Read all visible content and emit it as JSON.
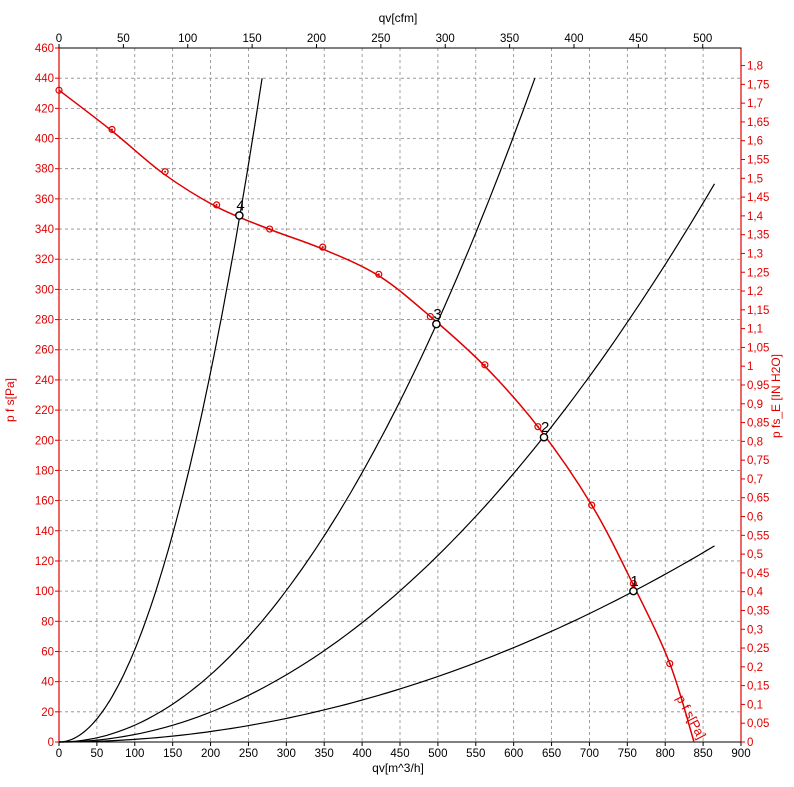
{
  "chart_data": {
    "type": "line",
    "x_label_bottom": "qv[m^3/h]",
    "x_label_top": "qv[cfm]",
    "y_label_left": "p f s[Pa]",
    "y_label_right": "p fs_E [IN H2O]",
    "xlim": [
      0,
      900
    ],
    "ylim": [
      0,
      460
    ],
    "x_ticks": [
      "0",
      "50",
      "100",
      "150",
      "200",
      "250",
      "300",
      "350",
      "400",
      "450",
      "500",
      "550",
      "600",
      "650",
      "700",
      "750",
      "800",
      "850",
      "900"
    ],
    "y_ticks": [
      "0",
      "20",
      "40",
      "60",
      "80",
      "100",
      "120",
      "140",
      "160",
      "180",
      "200",
      "220",
      "240",
      "260",
      "280",
      "300",
      "320",
      "340",
      "360",
      "380",
      "400",
      "420",
      "440",
      "460"
    ],
    "top_ticks": [
      {
        "value": 0,
        "label": "0"
      },
      {
        "value": 50,
        "label": "50"
      },
      {
        "value": 100,
        "label": "100"
      },
      {
        "value": 150,
        "label": "150"
      },
      {
        "value": 200,
        "label": "200"
      },
      {
        "value": 250,
        "label": "250"
      },
      {
        "value": 300,
        "label": "300"
      },
      {
        "value": 350,
        "label": "350"
      },
      {
        "value": 400,
        "label": "400"
      },
      {
        "value": 450,
        "label": "450"
      },
      {
        "value": 500,
        "label": "500"
      }
    ],
    "cfm_per_m3h": 0.588578,
    "right_ticks": [
      {
        "value": 0,
        "label": "0"
      },
      {
        "value": 0.05,
        "label": "0,05"
      },
      {
        "value": 0.1,
        "label": "0,1"
      },
      {
        "value": 0.15,
        "label": "0,15"
      },
      {
        "value": 0.2,
        "label": "0,2"
      },
      {
        "value": 0.25,
        "label": "0,25"
      },
      {
        "value": 0.3,
        "label": "0,3"
      },
      {
        "value": 0.35,
        "label": "0,35"
      },
      {
        "value": 0.4,
        "label": "0,4"
      },
      {
        "value": 0.45,
        "label": "0,45"
      },
      {
        "value": 0.5,
        "label": "0,5"
      },
      {
        "value": 0.55,
        "label": "0,55"
      },
      {
        "value": 0.6,
        "label": "0,6"
      },
      {
        "value": 0.65,
        "label": "0,65"
      },
      {
        "value": 0.7,
        "label": "0,7"
      },
      {
        "value": 0.75,
        "label": "0,75"
      },
      {
        "value": 0.8,
        "label": "0,8"
      },
      {
        "value": 0.85,
        "label": "0,85"
      },
      {
        "value": 0.9,
        "label": "0,9"
      },
      {
        "value": 0.95,
        "label": "0,95"
      },
      {
        "value": 1.0,
        "label": "1"
      },
      {
        "value": 1.05,
        "label": "1,05"
      },
      {
        "value": 1.1,
        "label": "1,1"
      },
      {
        "value": 1.15,
        "label": "1,15"
      },
      {
        "value": 1.2,
        "label": "1,2"
      },
      {
        "value": 1.25,
        "label": "1,25"
      },
      {
        "value": 1.3,
        "label": "1,3"
      },
      {
        "value": 1.35,
        "label": "1,35"
      },
      {
        "value": 1.4,
        "label": "1,4"
      },
      {
        "value": 1.45,
        "label": "1,45"
      },
      {
        "value": 1.5,
        "label": "1,5"
      },
      {
        "value": 1.55,
        "label": "1,55"
      },
      {
        "value": 1.6,
        "label": "1,6"
      },
      {
        "value": 1.65,
        "label": "1,65"
      },
      {
        "value": 1.7,
        "label": "1,7"
      },
      {
        "value": 1.75,
        "label": "1,75"
      },
      {
        "value": 1.8,
        "label": "1,8"
      }
    ],
    "pa_per_inh2o": 249.089,
    "grid": true,
    "fan_curve": {
      "name": "p f s[Pa]",
      "color": "#e00000",
      "x": [
        0,
        70,
        137,
        207,
        277,
        347,
        422,
        490,
        562,
        632,
        703,
        758,
        806,
        838
      ],
      "y": [
        432,
        405,
        377,
        355,
        340,
        327,
        309,
        282,
        249,
        209,
        157,
        104,
        52,
        0
      ],
      "markers": [
        {
          "x": 70,
          "y": 406
        },
        {
          "x": 140,
          "y": 378
        },
        {
          "x": 208,
          "y": 356
        },
        {
          "x": 278,
          "y": 340
        },
        {
          "x": 348,
          "y": 328
        },
        {
          "x": 422,
          "y": 310
        },
        {
          "x": 490,
          "y": 282
        },
        {
          "x": 562,
          "y": 250
        },
        {
          "x": 632,
          "y": 209
        },
        {
          "x": 703,
          "y": 157
        },
        {
          "x": 758,
          "y": 105
        },
        {
          "x": 806,
          "y": 52
        }
      ]
    },
    "system_curves": [
      {
        "id": "1",
        "x_end": 865,
        "y_end": 130
      },
      {
        "id": "2",
        "x_end": 865,
        "y_end": 370
      },
      {
        "id": "3",
        "x_end": 628,
        "y_end": 440
      },
      {
        "id": "4",
        "x_end": 268,
        "y_end": 440
      }
    ],
    "operating_points": [
      {
        "label": "1",
        "x": 758,
        "y": 100
      },
      {
        "label": "2",
        "x": 640,
        "y": 202
      },
      {
        "label": "3",
        "x": 498,
        "y": 277
      },
      {
        "label": "4",
        "x": 238,
        "y": 349
      }
    ],
    "colors": {
      "fan_curve": "#e00000",
      "system_curves": "#000000",
      "grid": "#8a8a8a"
    }
  }
}
